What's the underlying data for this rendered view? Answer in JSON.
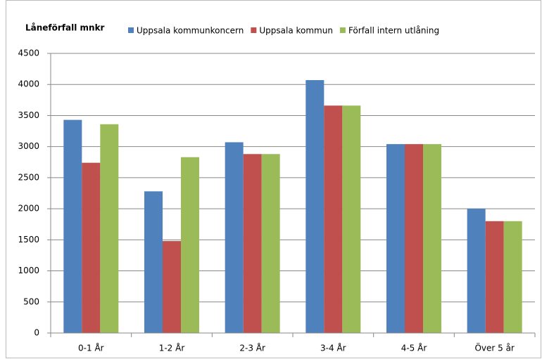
{
  "chart_data": {
    "type": "bar",
    "title": "Låneförfall mnkr",
    "categories": [
      "0-1 År",
      "1-2 År",
      "2-3 År",
      "3-4 År",
      "4-5 År",
      "Över 5 år"
    ],
    "series": [
      {
        "name": "Uppsala kommunkoncern",
        "color": "#4f81bd",
        "values": [
          3430,
          2280,
          3070,
          4070,
          3040,
          2000
        ]
      },
      {
        "name": "Uppsala kommun",
        "color": "#c0504d",
        "values": [
          2740,
          1480,
          2880,
          3660,
          3040,
          1800
        ]
      },
      {
        "name": "Förfall intern utlåning",
        "color": "#9bbb59",
        "values": [
          3360,
          2830,
          2880,
          3660,
          3040,
          1800
        ]
      }
    ],
    "ylim": [
      0,
      4500
    ],
    "yticks": [
      0,
      500,
      1000,
      1500,
      2000,
      2500,
      3000,
      3500,
      4000,
      4500
    ],
    "grid": true
  }
}
